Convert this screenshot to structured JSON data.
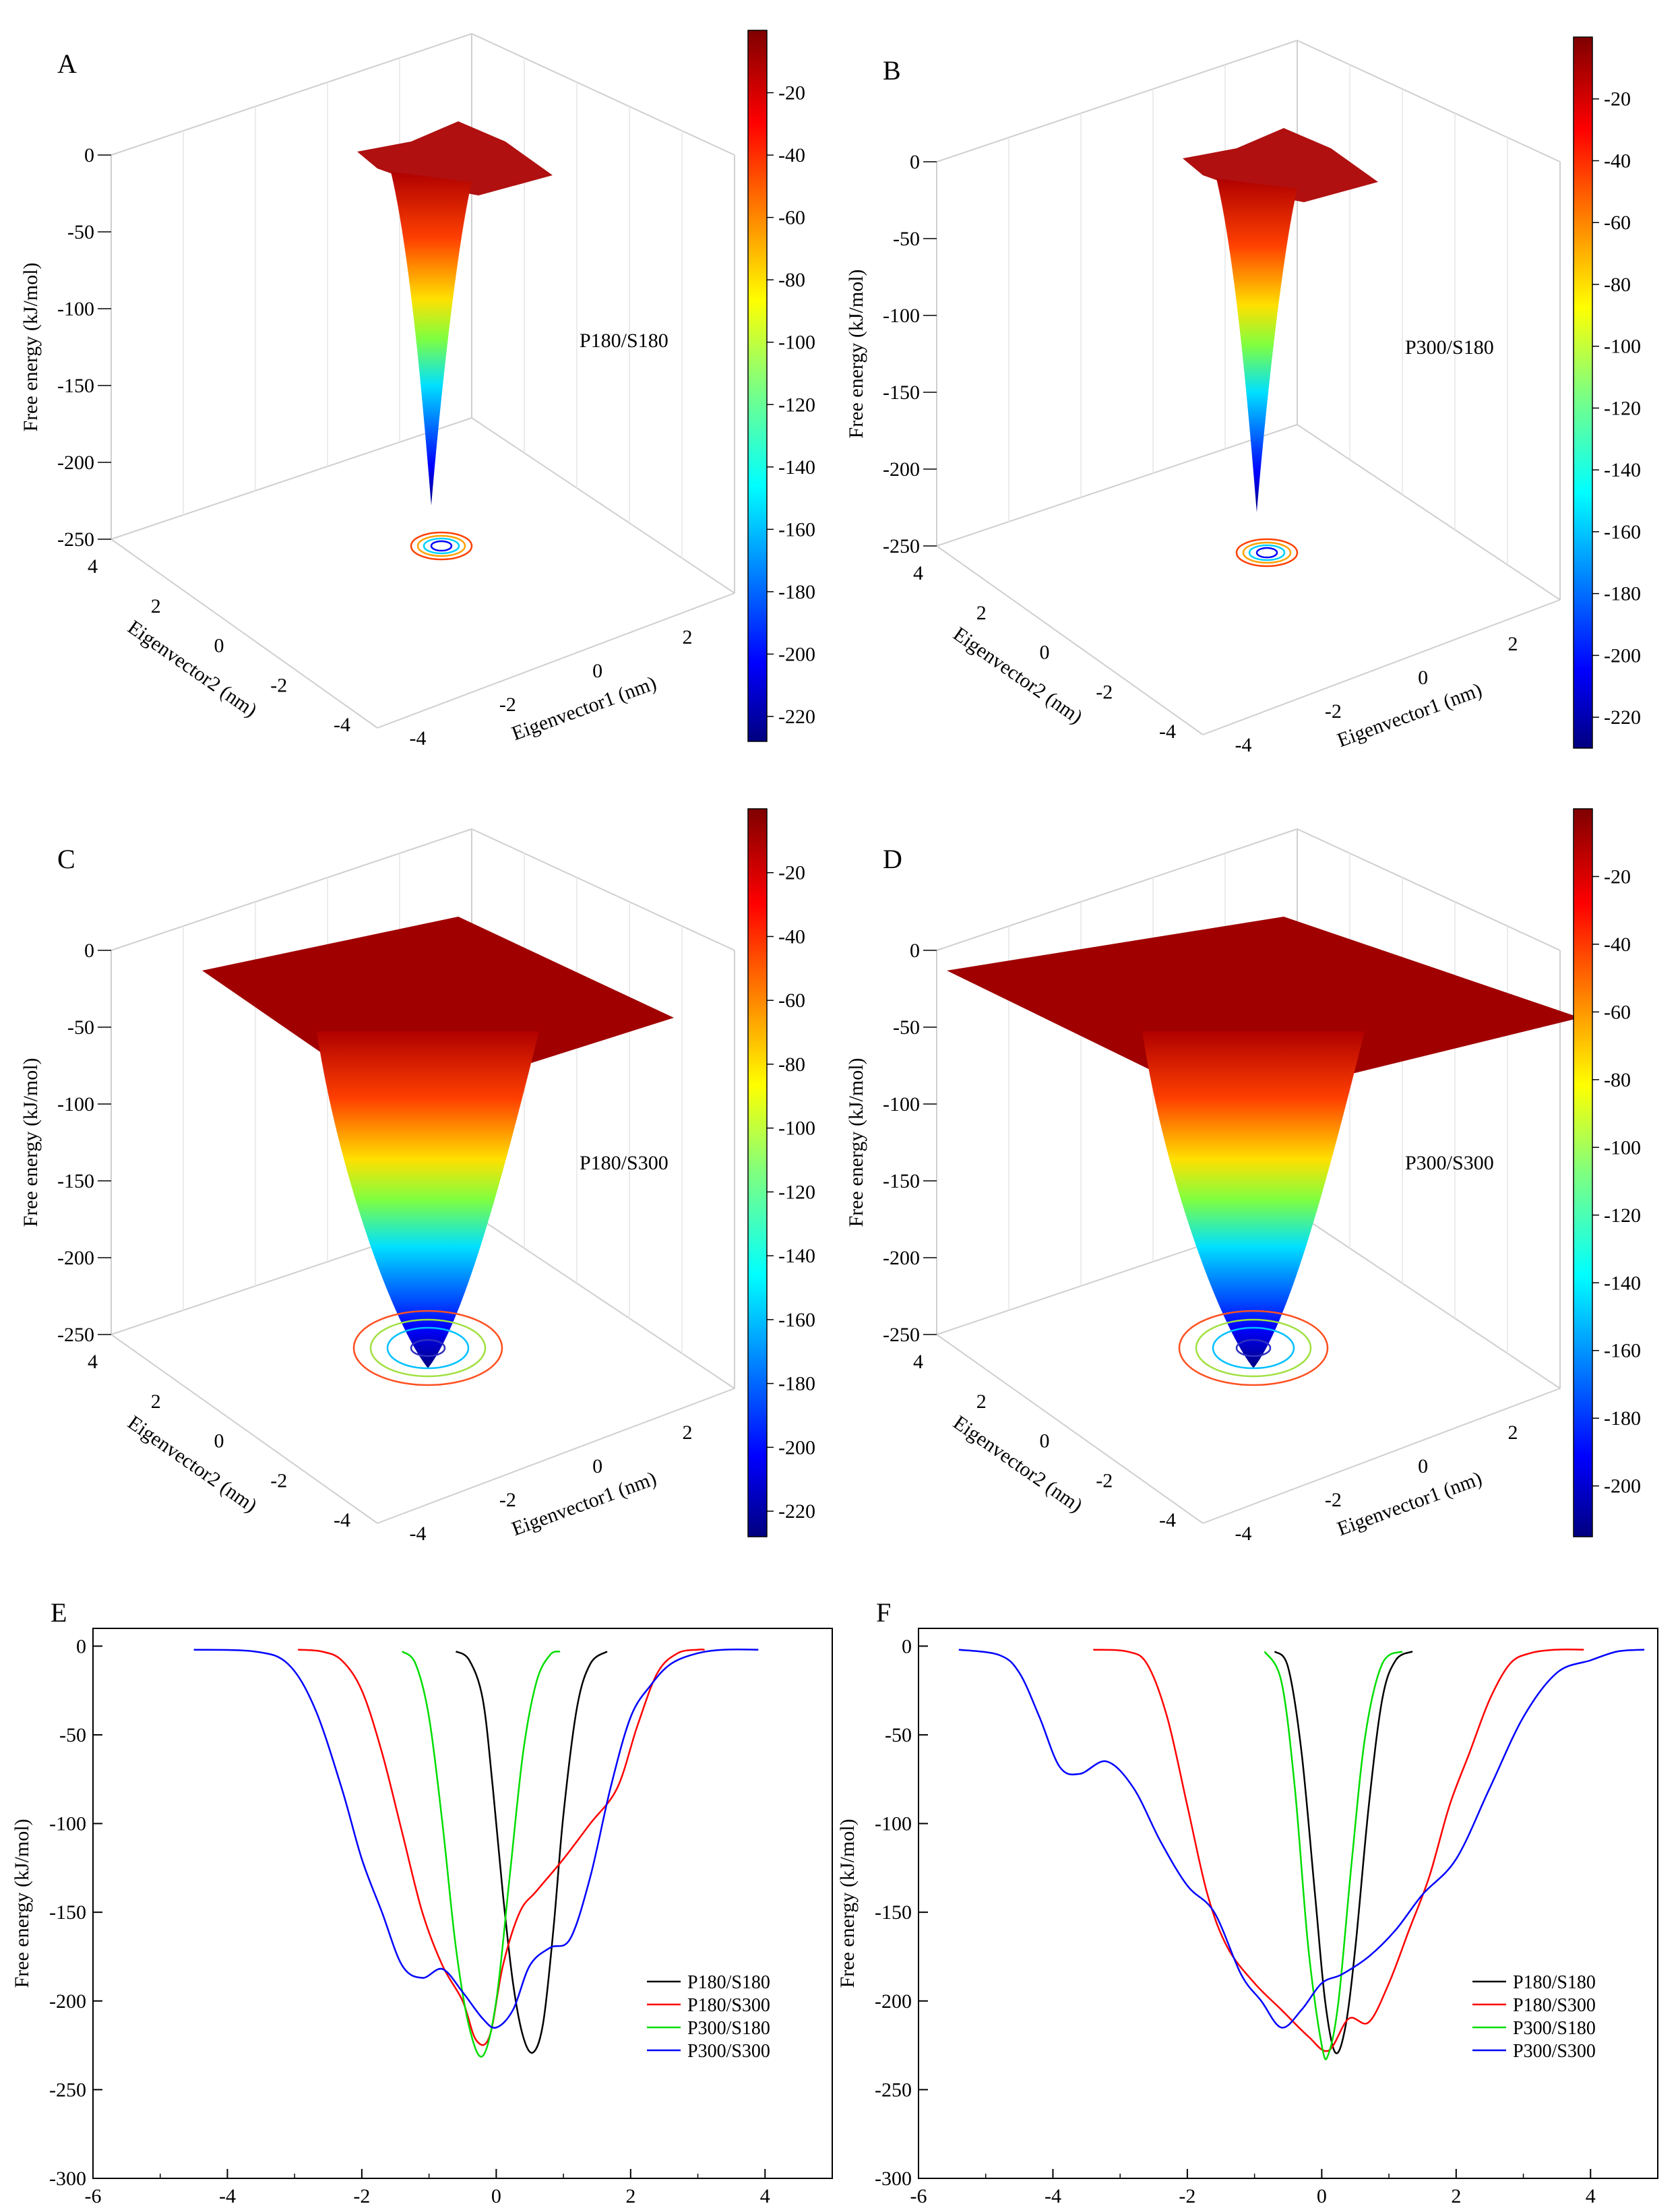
{
  "figure": {
    "panels_3d": [
      {
        "letter": "A",
        "label": "P180/S180",
        "zlabel": "Free energy (kJ/mol)",
        "z_ticks": [
          "0",
          "-50",
          "-100",
          "-150",
          "-200",
          "-250"
        ],
        "xlabel": "Eigenvector1 (nm)",
        "x_ticks": [
          "-4",
          "-2",
          "0",
          "2"
        ],
        "ylabel": "Eigenvector2 (nm)",
        "y_ticks": [
          "4",
          "2",
          "0",
          "-2",
          "-4"
        ],
        "colorbar_ticks": [
          "-20",
          "-40",
          "-60",
          "-80",
          "-100",
          "-120",
          "-140",
          "-160",
          "-180",
          "-200",
          "-220"
        ],
        "colorbar_range": [
          -228,
          0
        ]
      },
      {
        "letter": "B",
        "label": "P300/S180",
        "zlabel": "Free energy (kJ/mol)",
        "z_ticks": [
          "0",
          "-50",
          "-100",
          "-150",
          "-200",
          "-250"
        ],
        "xlabel": "Eigenvector1 (nm)",
        "x_ticks": [
          "-4",
          "-2",
          "0",
          "2"
        ],
        "ylabel": "Eigenvector2 (nm)",
        "y_ticks": [
          "4",
          "2",
          "0",
          "-2",
          "-4"
        ],
        "colorbar_ticks": [
          "-20",
          "-40",
          "-60",
          "-80",
          "-100",
          "-120",
          "-140",
          "-160",
          "-180",
          "-200",
          "-220"
        ],
        "colorbar_range": [
          -230,
          0
        ]
      },
      {
        "letter": "C",
        "label": "P180/S300",
        "zlabel": "Free energy (kJ/mol)",
        "z_ticks": [
          "0",
          "-50",
          "-100",
          "-150",
          "-200",
          "-250"
        ],
        "xlabel": "Eigenvector1 (nm)",
        "x_ticks": [
          "-4",
          "-2",
          "0",
          "2"
        ],
        "ylabel": "Eigenvector2 (nm)",
        "y_ticks": [
          "4",
          "2",
          "0",
          "-2",
          "-4"
        ],
        "colorbar_ticks": [
          "-20",
          "-40",
          "-60",
          "-80",
          "-100",
          "-120",
          "-140",
          "-160",
          "-180",
          "-200",
          "-220"
        ],
        "colorbar_range": [
          -228,
          0
        ]
      },
      {
        "letter": "D",
        "label": "P300/S300",
        "zlabel": "Free energy (kJ/mol)",
        "z_ticks": [
          "0",
          "-50",
          "-100",
          "-150",
          "-200",
          "-250"
        ],
        "xlabel": "Eigenvector1 (nm)",
        "x_ticks": [
          "-4",
          "-2",
          "0",
          "2"
        ],
        "ylabel": "Eigenvector2 (nm)",
        "y_ticks": [
          "4",
          "2",
          "0",
          "-2",
          "-4"
        ],
        "colorbar_ticks": [
          "-20",
          "-40",
          "-60",
          "-80",
          "-100",
          "-120",
          "-140",
          "-160",
          "-180",
          "-200"
        ],
        "colorbar_range": [
          -215,
          0
        ]
      }
    ],
    "series_colors": {
      "P180/S180": "#000000",
      "P180/S300": "#ff0000",
      "P300/S180": "#00dd00",
      "P300/S300": "#0000ff"
    }
  },
  "chart_data": [
    {
      "type": "line",
      "panel": "E",
      "xlabel": "Eigenvector1 (nm)",
      "ylabel": "Free energy (kJ/mol)",
      "xlim": [
        -6,
        5
      ],
      "ylim": [
        -300,
        10
      ],
      "x_ticks": [
        -6,
        -4,
        -2,
        0,
        2,
        4
      ],
      "y_ticks": [
        0,
        -50,
        -100,
        -150,
        -200,
        -250,
        -300
      ],
      "legend_position": "bottom-right",
      "series": [
        {
          "name": "P180/S180",
          "color": "#000000",
          "x": [
            -0.6,
            -0.4,
            -0.2,
            -0.05,
            0.1,
            0.25,
            0.4,
            0.55,
            0.7,
            0.85,
            1.0,
            1.2,
            1.4,
            1.65
          ],
          "y": [
            -3,
            -8,
            -30,
            -80,
            -140,
            -190,
            -220,
            -229,
            -212,
            -160,
            -95,
            -35,
            -10,
            -3
          ]
        },
        {
          "name": "P180/S300",
          "color": "#ff0000",
          "x": [
            -2.95,
            -2.6,
            -2.3,
            -2.0,
            -1.7,
            -1.4,
            -1.1,
            -0.8,
            -0.5,
            -0.3,
            -0.1,
            0.1,
            0.35,
            0.6,
            1.0,
            1.4,
            1.8,
            2.1,
            2.4,
            2.7,
            3.0,
            3.1
          ],
          "y": [
            -2,
            -3,
            -8,
            -25,
            -60,
            -105,
            -150,
            -180,
            -200,
            -222,
            -220,
            -180,
            -150,
            -138,
            -120,
            -100,
            -80,
            -45,
            -15,
            -4,
            -2,
            -2
          ]
        },
        {
          "name": "P300/S180",
          "color": "#00dd00",
          "x": [
            -1.4,
            -1.2,
            -1.0,
            -0.8,
            -0.6,
            -0.4,
            -0.2,
            0.0,
            0.2,
            0.4,
            0.6,
            0.8,
            0.95
          ],
          "y": [
            -3,
            -10,
            -40,
            -100,
            -170,
            -215,
            -231,
            -200,
            -130,
            -60,
            -20,
            -5,
            -3
          ]
        },
        {
          "name": "P300/S300",
          "color": "#0000ff",
          "x": [
            -4.5,
            -3.6,
            -3.1,
            -2.7,
            -2.3,
            -2.0,
            -1.7,
            -1.4,
            -1.1,
            -0.8,
            -0.5,
            -0.2,
            0.0,
            0.25,
            0.5,
            0.8,
            1.1,
            1.4,
            1.7,
            2.0,
            2.3,
            2.6,
            3.0,
            3.4,
            3.9
          ],
          "y": [
            -2,
            -3,
            -10,
            -35,
            -80,
            -120,
            -150,
            -180,
            -187,
            -182,
            -195,
            -210,
            -215,
            -205,
            -180,
            -170,
            -165,
            -130,
            -80,
            -40,
            -22,
            -10,
            -4,
            -2,
            -2
          ]
        }
      ]
    },
    {
      "type": "line",
      "panel": "F",
      "xlabel": "Eigenvector2 (nm)",
      "ylabel": "Free energy (kJ/mol)",
      "xlim": [
        -6,
        5
      ],
      "ylim": [
        -300,
        10
      ],
      "x_ticks": [
        -6,
        -4,
        -2,
        0,
        2,
        4
      ],
      "y_ticks": [
        0,
        -50,
        -100,
        -150,
        -200,
        -250,
        -300
      ],
      "legend_position": "bottom-right",
      "series": [
        {
          "name": "P180/S180",
          "color": "#000000",
          "x": [
            -0.7,
            -0.5,
            -0.3,
            -0.1,
            0.05,
            0.2,
            0.35,
            0.5,
            0.7,
            0.9,
            1.1,
            1.35
          ],
          "y": [
            -3,
            -12,
            -60,
            -140,
            -200,
            -229,
            -215,
            -170,
            -90,
            -30,
            -8,
            -3
          ]
        },
        {
          "name": "P180/S300",
          "color": "#ff0000",
          "x": [
            -3.4,
            -2.9,
            -2.6,
            -2.3,
            -2.0,
            -1.7,
            -1.4,
            -1.0,
            -0.6,
            -0.2,
            0.1,
            0.4,
            0.7,
            1.0,
            1.3,
            1.6,
            1.9,
            2.2,
            2.5,
            2.8,
            3.1,
            3.5,
            3.9
          ],
          "y": [
            -2,
            -3,
            -10,
            -40,
            -90,
            -140,
            -170,
            -190,
            -205,
            -220,
            -228,
            -210,
            -212,
            -190,
            -160,
            -130,
            -90,
            -60,
            -30,
            -10,
            -4,
            -2,
            -2
          ]
        },
        {
          "name": "P300/S180",
          "color": "#00dd00",
          "x": [
            -0.85,
            -0.6,
            -0.4,
            -0.2,
            0.0,
            0.1,
            0.25,
            0.45,
            0.65,
            0.9,
            1.2
          ],
          "y": [
            -3,
            -20,
            -80,
            -170,
            -225,
            -230,
            -200,
            -120,
            -50,
            -10,
            -3
          ]
        },
        {
          "name": "P300/S300",
          "color": "#0000ff",
          "x": [
            -5.4,
            -4.8,
            -4.5,
            -4.2,
            -3.9,
            -3.6,
            -3.2,
            -2.8,
            -2.4,
            -2.0,
            -1.6,
            -1.2,
            -0.9,
            -0.6,
            -0.3,
            0.0,
            0.3,
            0.7,
            1.1,
            1.5,
            2.0,
            2.5,
            3.0,
            3.5,
            4.0,
            4.4,
            4.8
          ],
          "y": [
            -2,
            -5,
            -15,
            -40,
            -68,
            -72,
            -65,
            -80,
            -110,
            -135,
            -150,
            -185,
            -200,
            -215,
            -205,
            -190,
            -185,
            -175,
            -160,
            -140,
            -120,
            -80,
            -40,
            -15,
            -8,
            -3,
            -2
          ]
        }
      ]
    }
  ]
}
